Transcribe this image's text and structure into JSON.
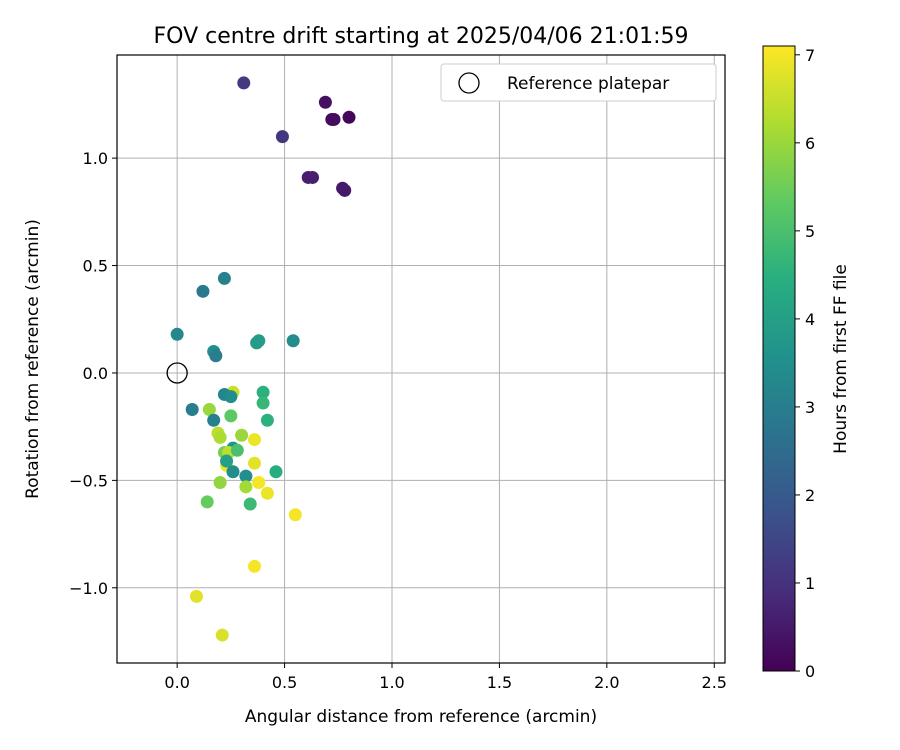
{
  "chart_data": {
    "type": "scatter",
    "title": "FOV centre drift starting at 2025/04/06 21:01:59",
    "xlabel": "Angular distance from reference (arcmin)",
    "ylabel": "Rotation from reference (arcmin)",
    "xlim": [
      -0.28,
      2.55
    ],
    "ylim": [
      -1.35,
      1.48
    ],
    "x_ticks": [
      0.0,
      0.5,
      1.0,
      1.5,
      2.0,
      2.5
    ],
    "x_tick_labels": [
      "0.0",
      "0.5",
      "1.0",
      "1.5",
      "2.0",
      "2.5"
    ],
    "y_ticks": [
      -1.0,
      -0.5,
      0.0,
      0.5,
      1.0
    ],
    "y_tick_labels": [
      "−1.0",
      "−0.5",
      "0.0",
      "0.5",
      "1.0"
    ],
    "grid": true,
    "legend": {
      "placement": "top-right",
      "entries": [
        {
          "label": "Reference platepar",
          "marker": "open-circle"
        }
      ]
    },
    "reference_point": {
      "x": 0.0,
      "y": 0.0
    },
    "colorbar": {
      "label": "Hours from first FF file",
      "range": [
        0,
        7.1
      ],
      "ticks": [
        0,
        1,
        2,
        3,
        4,
        5,
        6,
        7
      ],
      "tick_labels": [
        "0",
        "1",
        "2",
        "3",
        "4",
        "5",
        "6",
        "7"
      ],
      "colormap": "viridis"
    },
    "points": [
      {
        "x": 0.31,
        "y": 1.35,
        "h": 1.2
      },
      {
        "x": 0.69,
        "y": 1.26,
        "h": 0.3
      },
      {
        "x": 0.72,
        "y": 1.18,
        "h": 0.2
      },
      {
        "x": 0.73,
        "y": 1.18,
        "h": 0.2
      },
      {
        "x": 0.8,
        "y": 1.19,
        "h": 0.1
      },
      {
        "x": 0.49,
        "y": 1.1,
        "h": 1.1
      },
      {
        "x": 0.61,
        "y": 0.91,
        "h": 0.6
      },
      {
        "x": 0.63,
        "y": 0.91,
        "h": 0.6
      },
      {
        "x": 0.77,
        "y": 0.86,
        "h": 0.5
      },
      {
        "x": 0.78,
        "y": 0.85,
        "h": 0.5
      },
      {
        "x": 0.22,
        "y": 0.44,
        "h": 3.1
      },
      {
        "x": 0.12,
        "y": 0.38,
        "h": 2.9
      },
      {
        "x": 0.0,
        "y": 0.18,
        "h": 3.3
      },
      {
        "x": 0.37,
        "y": 0.14,
        "h": 3.9
      },
      {
        "x": 0.38,
        "y": 0.15,
        "h": 3.9
      },
      {
        "x": 0.54,
        "y": 0.15,
        "h": 3.4
      },
      {
        "x": 0.17,
        "y": 0.1,
        "h": 3.5
      },
      {
        "x": 0.18,
        "y": 0.08,
        "h": 3.0
      },
      {
        "x": 0.26,
        "y": -0.09,
        "h": 6.5
      },
      {
        "x": 0.4,
        "y": -0.09,
        "h": 4.5
      },
      {
        "x": 0.22,
        "y": -0.1,
        "h": 3.2
      },
      {
        "x": 0.25,
        "y": -0.11,
        "h": 3.4
      },
      {
        "x": 0.4,
        "y": -0.14,
        "h": 4.7
      },
      {
        "x": 0.07,
        "y": -0.17,
        "h": 3.0
      },
      {
        "x": 0.15,
        "y": -0.17,
        "h": 6.0
      },
      {
        "x": 0.25,
        "y": -0.2,
        "h": 5.3
      },
      {
        "x": 0.17,
        "y": -0.22,
        "h": 3.1
      },
      {
        "x": 0.42,
        "y": -0.22,
        "h": 4.5
      },
      {
        "x": 0.19,
        "y": -0.28,
        "h": 6.4
      },
      {
        "x": 0.2,
        "y": -0.3,
        "h": 6.2
      },
      {
        "x": 0.3,
        "y": -0.29,
        "h": 6.0
      },
      {
        "x": 0.36,
        "y": -0.31,
        "h": 6.9
      },
      {
        "x": 0.26,
        "y": -0.35,
        "h": 3.6
      },
      {
        "x": 0.22,
        "y": -0.37,
        "h": 5.6
      },
      {
        "x": 0.24,
        "y": -0.37,
        "h": 6.4
      },
      {
        "x": 0.28,
        "y": -0.36,
        "h": 5.0
      },
      {
        "x": 0.23,
        "y": -0.43,
        "h": 6.9
      },
      {
        "x": 0.23,
        "y": -0.41,
        "h": 4.0
      },
      {
        "x": 0.36,
        "y": -0.42,
        "h": 6.8
      },
      {
        "x": 0.26,
        "y": -0.46,
        "h": 3.4
      },
      {
        "x": 0.32,
        "y": -0.48,
        "h": 3.5
      },
      {
        "x": 0.46,
        "y": -0.46,
        "h": 4.4
      },
      {
        "x": 0.2,
        "y": -0.51,
        "h": 5.9
      },
      {
        "x": 0.38,
        "y": -0.51,
        "h": 7.0
      },
      {
        "x": 0.32,
        "y": -0.53,
        "h": 6.1
      },
      {
        "x": 0.42,
        "y": -0.56,
        "h": 6.9
      },
      {
        "x": 0.14,
        "y": -0.6,
        "h": 5.4
      },
      {
        "x": 0.34,
        "y": -0.61,
        "h": 4.8
      },
      {
        "x": 0.55,
        "y": -0.66,
        "h": 7.0
      },
      {
        "x": 0.36,
        "y": -0.9,
        "h": 7.0
      },
      {
        "x": 0.09,
        "y": -1.04,
        "h": 6.8
      },
      {
        "x": 0.21,
        "y": -1.22,
        "h": 6.7
      }
    ]
  }
}
